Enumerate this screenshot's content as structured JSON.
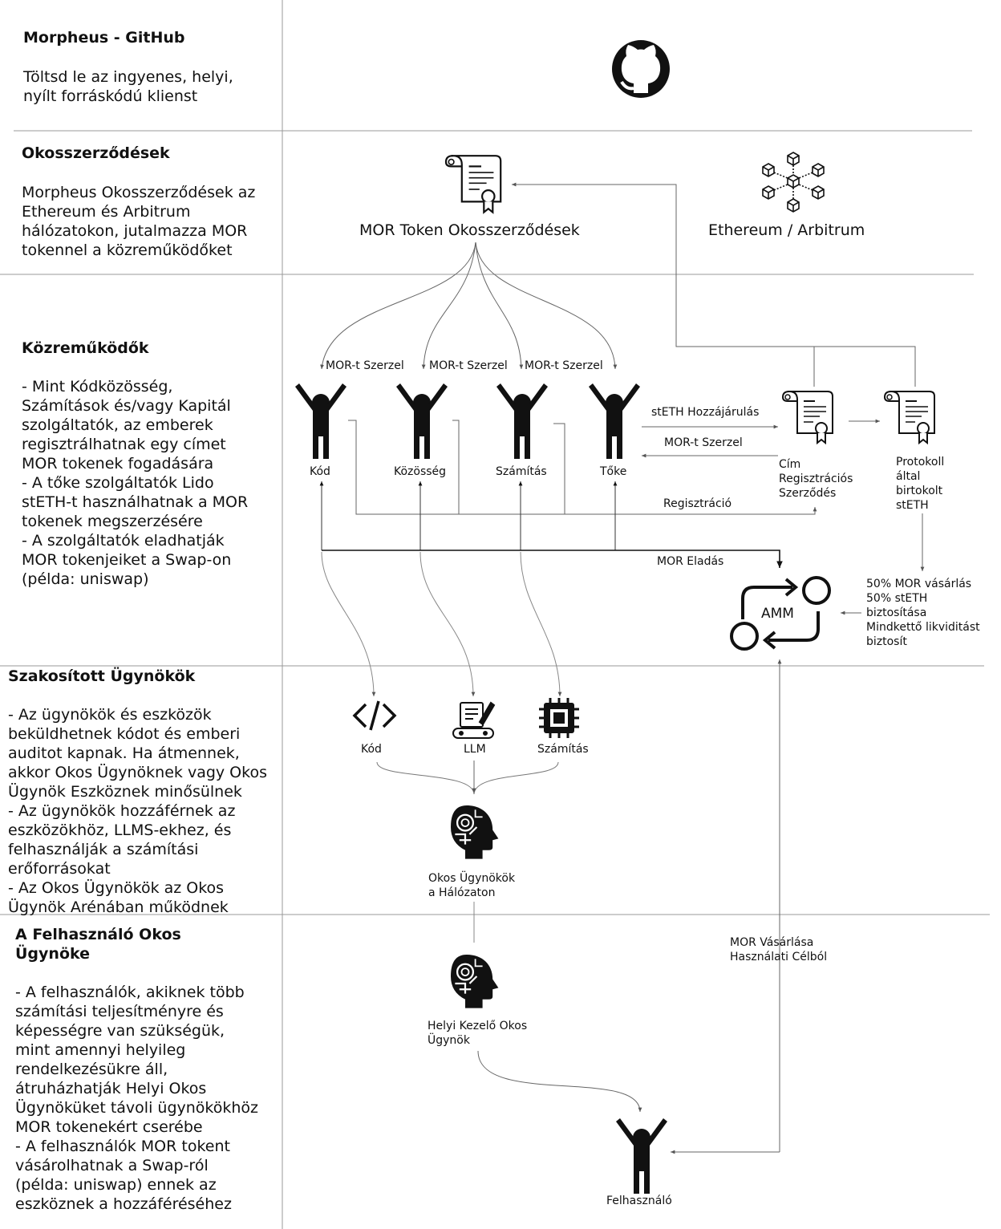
{
  "sections": [
    {
      "id": "github",
      "title": "Morpheus - GitHub",
      "body": "Töltsd le az ingyenes, helyi,\nnyílt forráskódú klienst"
    },
    {
      "id": "smart",
      "title": "Okosszerződések",
      "body": "Morpheus Okosszerződések az\nEthereum és Arbitrum\nhálózatokon, jutalmazza MOR\ntokennel a közreműködőket"
    },
    {
      "id": "contrib",
      "title": "Közreműködők",
      "body": "- Mint Kódközösség,\nSzámítások és/vagy Kapitál\nszolgáltatók, az emberek\nregisztrálhatnak egy címet\nMOR tokenek fogadására\n- A tőke szolgáltatók Lido\nstETH-t használhatnak a MOR\ntokenek megszerzésére\n- A szolgáltatók eladhatják\nMOR tokenjeiket a Swap-on\n(példa: uniswap)"
    },
    {
      "id": "agents",
      "title": "Szakosított Ügynökök",
      "body": "- Az ügynökök és eszközök\nbeküldhetnek kódot és emberi\nauditot kapnak. Ha átmennek,\nakkor Okos Ügynöknek vagy Okos\nÜgynök Eszköznek minősülnek\n- Az ügynökök hozzáférnek az\neszközökhöz, LLMS-ekhez, és\nfelhasználják a számítási\nerőforrásokat\n- Az Okos Ügynökök az Okos\nÜgynök Arénában működnek"
    },
    {
      "id": "user",
      "title": "A Felhasználó Okos\nÜgynöke",
      "body": "- A felhasználók, akiknek több\nszámítási teljesítményre és\nképességre van szükségük,\nmint amennyi helyileg\nrendelkezésükre áll,\nátruházhatják Helyi Okos\nÜgynöküket távoli ügynökökhöz\nMOR tokenekért cserébe\n- A felhasználók MOR tokent\nvásárolhatnak a Swap-ról\n(példa: uniswap) ennek az\neszköznek a hozzáféréséhez"
    }
  ],
  "diagram": {
    "mor_contracts": "MOR Token Okosszerződések",
    "eth_arb": "Ethereum / Arbitrum",
    "earn1": "MOR-t Szerzel",
    "earn2": "MOR-t Szerzel",
    "earn3": "MOR-t Szerzel",
    "steth_contrib": "stETH Hozzájárulás",
    "earn_back": "MOR-t Szerzel",
    "registration": "Regisztráció",
    "mor_sell": "MOR Eladás",
    "people": [
      "Kód",
      "Közösség",
      "Számítás",
      "Tőke"
    ],
    "registry": "Cím\nRegisztrációs\nSzerződés",
    "protocol": "Protokoll\náltal\nbirtokolt\nstETH",
    "amm": "AMM",
    "amm_note": "50% MOR vásárlás\n50% stETH\nbiztosítása\nMindkettő likviditást\nbiztosít",
    "agent_tools": [
      "Kód",
      "LLM",
      "Számítás"
    ],
    "smart_agents": "Okos Ügynökök\na Hálózaton",
    "local_agent": "Helyi Kezelő Okos\nÜgynök",
    "mor_buy": "MOR Vásárlása\nHasználati Célból",
    "end_user": "Felhasználó"
  },
  "icons": [
    "github-icon",
    "contract-icon",
    "blockchain-icon",
    "person-icon",
    "code-icon",
    "llm-icon",
    "chip-icon",
    "ai-head-icon",
    "amm-cycle-icon"
  ]
}
